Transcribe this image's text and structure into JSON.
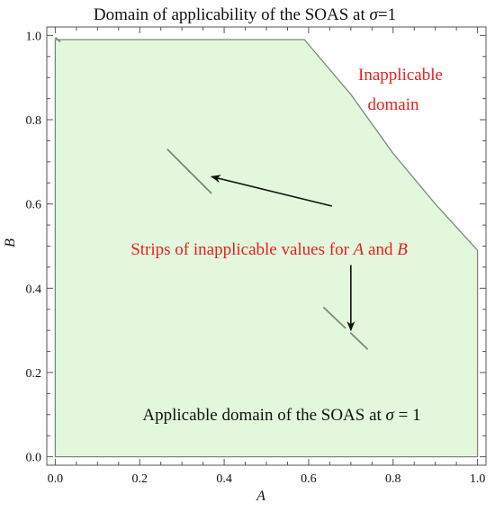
{
  "chart_data": {
    "type": "area",
    "title_parts": [
      "Domain of applicability of the SOAS at ",
      "σ",
      "=1"
    ],
    "xlabel": "A",
    "ylabel": "B",
    "xlim": [
      -0.02,
      1.02
    ],
    "ylim": [
      -0.02,
      1.02
    ],
    "x_ticks": [
      0.0,
      0.2,
      0.4,
      0.6,
      0.8,
      1.0
    ],
    "x_tick_labels": [
      "0.0",
      "0.2",
      "0.4",
      "0.6",
      "0.8",
      "1.0"
    ],
    "y_ticks": [
      0.0,
      0.2,
      0.4,
      0.6,
      0.8,
      1.0
    ],
    "y_tick_labels": [
      "0.0",
      "0.2",
      "0.4",
      "0.6",
      "0.8",
      "1.0"
    ],
    "grid": false,
    "region": {
      "fill": "#e2f7dc",
      "edge": "#7a8a7a",
      "boundary": [
        [
          0.0,
          0.0
        ],
        [
          1.0,
          0.0
        ],
        [
          1.0,
          0.49
        ],
        [
          0.9,
          0.6
        ],
        [
          0.8,
          0.72
        ],
        [
          0.7,
          0.86
        ],
        [
          0.59,
          0.99
        ],
        [
          0.0,
          0.99
        ]
      ]
    },
    "strips": [
      {
        "points": [
          [
            0.0,
            0.995
          ],
          [
            0.012,
            0.985
          ]
        ],
        "dashed": false
      },
      {
        "points": [
          [
            0.265,
            0.73
          ],
          [
            0.37,
            0.625
          ]
        ],
        "dashed": false
      },
      {
        "points": [
          [
            0.635,
            0.355
          ],
          [
            0.74,
            0.255
          ]
        ],
        "dashed": true
      }
    ],
    "arrows": [
      {
        "from": [
          0.655,
          0.595
        ],
        "to": [
          0.37,
          0.665
        ]
      },
      {
        "from": [
          0.7,
          0.455
        ],
        "to": [
          0.7,
          0.3
        ]
      }
    ],
    "annotations": {
      "inapplicable_line1": "Inapplicable",
      "inapplicable_line2": "domain",
      "strips_label": {
        "prefix": "Strips of inapplicable values for ",
        "var_a": "A",
        "middle": " and ",
        "var_b": "B"
      },
      "applicable_label": {
        "prefix": "Applicable domain of the SOAS at ",
        "sigma": "σ",
        "suffix": " = 1"
      }
    }
  }
}
